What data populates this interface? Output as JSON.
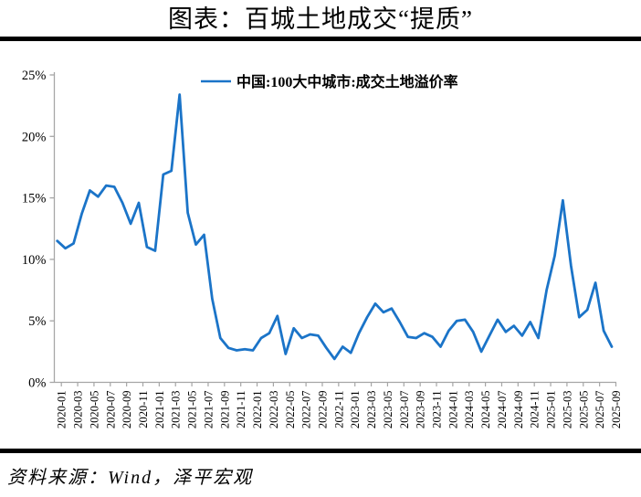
{
  "page": {
    "title": "图表：百城土地成交“提质”",
    "source_note": "资料来源：Wind，泽平宏观"
  },
  "colors": {
    "line": "#1B74C8",
    "axis": "#A6A6A6",
    "text": "#000000",
    "rule": "#000000",
    "background": "#FFFFFF"
  },
  "chart_data": {
    "type": "line",
    "title": "图表：百城土地成交“提质”",
    "legend_position": "top-center",
    "grid": false,
    "xlabel": "",
    "ylabel": "",
    "ylim": [
      0,
      25
    ],
    "y_tick_labels": [
      "0%",
      "5%",
      "10%",
      "15%",
      "20%",
      "25%"
    ],
    "x_tick_interval": 2,
    "categories": [
      "2020-01",
      "2020-02",
      "2020-03",
      "2020-04",
      "2020-05",
      "2020-06",
      "2020-07",
      "2020-08",
      "2020-09",
      "2020-10",
      "2020-11",
      "2020-12",
      "2021-01",
      "2021-02",
      "2021-03",
      "2021-04",
      "2021-05",
      "2021-06",
      "2021-07",
      "2021-08",
      "2021-09",
      "2021-10",
      "2021-11",
      "2021-12",
      "2022-01",
      "2022-02",
      "2022-03",
      "2022-04",
      "2022-05",
      "2022-06",
      "2022-07",
      "2022-08",
      "2022-09",
      "2022-10",
      "2022-11",
      "2022-12",
      "2023-01",
      "2023-02",
      "2023-03",
      "2023-04",
      "2023-05",
      "2023-06",
      "2023-07",
      "2023-08",
      "2023-09",
      "2023-10",
      "2023-11",
      "2023-12",
      "2024-01",
      "2024-02",
      "2024-03",
      "2024-04",
      "2024-05",
      "2024-06",
      "2024-07",
      "2024-08",
      "2024-09",
      "2024-10",
      "2024-11",
      "2024-12",
      "2025-01",
      "2025-02",
      "2025-03",
      "2025-04",
      "2025-05",
      "2025-06",
      "2025-07",
      "2025-08",
      "2025-09"
    ],
    "series": [
      {
        "name": "中国:100大中城市:成交土地溢价率",
        "unit": "%",
        "values": [
          11.5,
          10.9,
          11.3,
          13.7,
          15.6,
          15.1,
          16.0,
          15.9,
          14.6,
          12.9,
          14.6,
          11.0,
          10.7,
          16.9,
          17.2,
          23.4,
          13.8,
          11.2,
          12.0,
          6.8,
          3.6,
          2.8,
          2.6,
          2.7,
          2.6,
          3.6,
          4.0,
          5.4,
          2.3,
          4.4,
          3.6,
          3.9,
          3.8,
          2.8,
          1.9,
          2.9,
          2.4,
          4.0,
          5.3,
          6.4,
          5.7,
          6.0,
          4.9,
          3.7,
          3.6,
          4.0,
          3.7,
          2.9,
          4.2,
          5.0,
          5.1,
          4.1,
          2.5,
          3.8,
          5.1,
          4.1,
          4.6,
          3.8,
          4.9,
          3.6,
          7.5,
          10.3,
          14.8,
          9.5,
          5.3,
          5.9,
          8.1,
          4.2,
          2.9
        ]
      }
    ]
  }
}
